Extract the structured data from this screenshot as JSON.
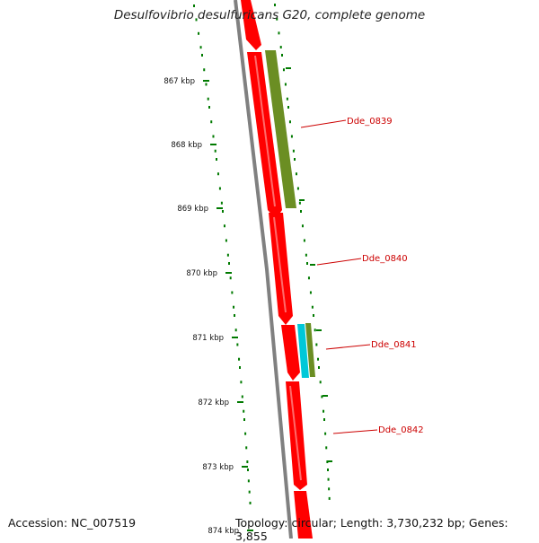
{
  "title": "Desulfovibrio desulfuricans G20, complete genome",
  "accession": "Accession: NC_007519",
  "summary": "Topology: circular; Length: 3,730,232 bp; Genes: 3,855",
  "ticks": [
    "867 kbp",
    "868 kbp",
    "869 kbp",
    "870 kbp",
    "871 kbp",
    "872 kbp",
    "873 kbp",
    "874 kbp"
  ],
  "genes": [
    "Dde_0839",
    "Dde_0840",
    "Dde_0841",
    "Dde_0842"
  ],
  "colors": {
    "gene_red": "#ff0000",
    "gene_olive": "#6b8e23",
    "gene_cyan": "#00c8d8",
    "backbone": "#808080",
    "tick_green": "#007a00",
    "label_red": "#cc0000"
  }
}
